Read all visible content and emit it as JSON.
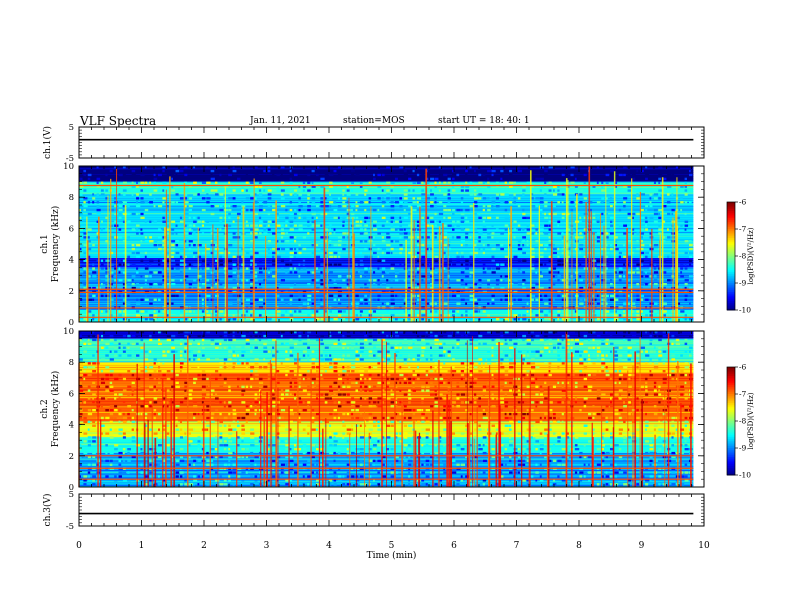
{
  "header": {
    "title": "VLF Spectra",
    "date": "Jan. 11, 2021",
    "station": "station=MOS",
    "start": "start UT =  18: 40: 1"
  },
  "chart_data": [
    {
      "type": "line",
      "title": "",
      "ylabel": "ch.1(V)",
      "ylim": [
        -5,
        5
      ],
      "yticks": [
        "5",
        "-5"
      ],
      "xlim": [
        0,
        10
      ],
      "series": [
        {
          "x": [
            0,
            9.83
          ],
          "y": [
            0.9,
            0.9
          ]
        }
      ]
    },
    {
      "type": "heatmap",
      "ylabel_line1": "ch.1",
      "ylabel_line2": "Frequency (kHz)",
      "ylim": [
        0,
        10
      ],
      "yticks": [
        "0",
        "2",
        "4",
        "6",
        "8",
        "10"
      ],
      "xlim": [
        0,
        10
      ],
      "data_end_min": 9.83,
      "colorbar": {
        "label": "log(PSD)(V²/Hz)",
        "range": [
          -10,
          -6
        ],
        "ticks": [
          "-6",
          "-7",
          "-8",
          "-9",
          "-10"
        ]
      },
      "bands_khz": [
        {
          "from": 9.0,
          "to": 10.0,
          "level": -10.0
        },
        {
          "from": 8.2,
          "to": 9.0,
          "level": -8.4
        },
        {
          "from": 4.1,
          "to": 8.2,
          "level": -8.6
        },
        {
          "from": 3.5,
          "to": 4.1,
          "level": -9.4
        },
        {
          "from": 2.2,
          "to": 3.5,
          "level": -8.9
        },
        {
          "from": 0.8,
          "to": 2.2,
          "level": -9.0
        },
        {
          "from": 0.0,
          "to": 0.8,
          "level": -8.5
        }
      ],
      "strong_lines_khz": [
        0.3,
        0.9,
        1.9,
        2.1,
        8.75
      ]
    },
    {
      "type": "heatmap",
      "ylabel_line1": "ch.2",
      "ylabel_line2": "Frequency (kHz)",
      "ylim": [
        0,
        10
      ],
      "yticks": [
        "0",
        "2",
        "4",
        "6",
        "8",
        "10"
      ],
      "xlim": [
        0,
        10
      ],
      "data_end_min": 9.83,
      "colorbar": {
        "label": "log(PSD)(V²/Hz)",
        "range": [
          -10,
          -6
        ],
        "ticks": [
          "-6",
          "-7",
          "-8",
          "-9",
          "-10"
        ]
      },
      "bands_khz": [
        {
          "from": 9.5,
          "to": 10.0,
          "level": -9.6
        },
        {
          "from": 8.0,
          "to": 9.5,
          "level": -8.3
        },
        {
          "from": 7.3,
          "to": 8.0,
          "level": -7.4
        },
        {
          "from": 4.2,
          "to": 7.3,
          "level": -6.9
        },
        {
          "from": 3.2,
          "to": 4.2,
          "level": -7.6
        },
        {
          "from": 2.2,
          "to": 3.2,
          "level": -8.4
        },
        {
          "from": 0.0,
          "to": 2.2,
          "level": -8.8
        }
      ],
      "strong_lines_khz": [
        0.5,
        1.2,
        2.0
      ]
    },
    {
      "type": "line",
      "title": "",
      "ylabel": "ch.3(V)",
      "ylim": [
        -5,
        5
      ],
      "yticks": [
        "5",
        "-5"
      ],
      "xlim": [
        0,
        10
      ],
      "series": [
        {
          "x": [
            0,
            9.83
          ],
          "y": [
            -1.1,
            -1.1
          ]
        }
      ]
    }
  ],
  "xaxis": {
    "label": "Time (min)",
    "ticks": [
      "0",
      "1",
      "2",
      "3",
      "4",
      "5",
      "6",
      "7",
      "8",
      "9",
      "10"
    ]
  }
}
